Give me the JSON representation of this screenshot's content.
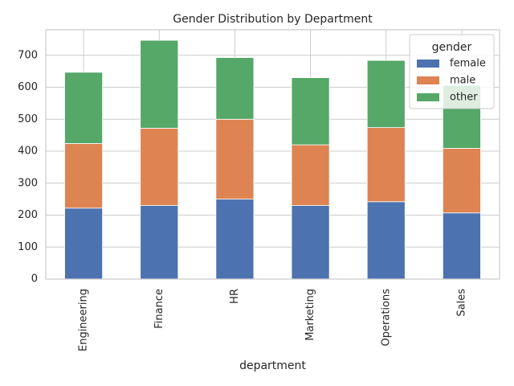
{
  "chart_data": {
    "type": "bar",
    "stacked": true,
    "title": "Gender Distribution by Department",
    "xlabel": "department",
    "ylabel": "",
    "categories": [
      "Engineering",
      "Finance",
      "HR",
      "Marketing",
      "Operations",
      "Sales"
    ],
    "series": [
      {
        "name": "female",
        "color": "#4c72b0",
        "values": [
          222,
          230,
          250,
          230,
          242,
          207
        ]
      },
      {
        "name": "male",
        "color": "#dd8452",
        "values": [
          202,
          242,
          250,
          190,
          232,
          202
        ]
      },
      {
        "name": "other",
        "color": "#55a868",
        "values": [
          223,
          275,
          193,
          210,
          210,
          197
        ]
      }
    ],
    "ylim": [
      0,
      780
    ],
    "yticks": [
      0,
      100,
      200,
      300,
      400,
      500,
      600,
      700
    ],
    "grid": true,
    "legend": {
      "title": "gender",
      "placement": "top-right"
    }
  }
}
